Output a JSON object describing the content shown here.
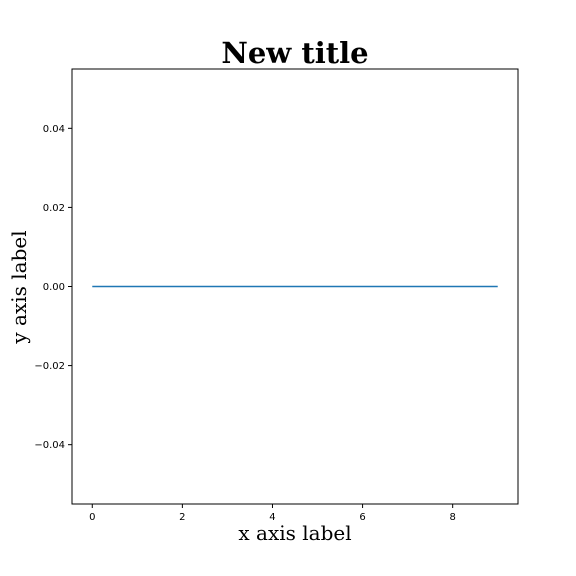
{
  "chart_data": {
    "type": "line",
    "title": "New title",
    "xlabel": "x axis label",
    "ylabel": "y axis label",
    "xlim": [
      -0.45,
      9.45
    ],
    "ylim": [
      -0.055,
      0.055
    ],
    "x_ticks": [
      0,
      2,
      4,
      6,
      8
    ],
    "x_tick_labels": [
      "0",
      "2",
      "4",
      "6",
      "8"
    ],
    "y_ticks": [
      0.04,
      0.02,
      0.0,
      -0.02,
      -0.04
    ],
    "y_tick_labels": [
      "0.04",
      "0.02",
      "0.00",
      "−0.02",
      "−0.04"
    ],
    "grid": false,
    "series": [
      {
        "x": [
          0,
          1,
          2,
          3,
          4,
          5,
          6,
          7,
          8,
          9
        ],
        "values": [
          0,
          0,
          0,
          0,
          0,
          0,
          0,
          0,
          0,
          0
        ],
        "color": "#1f77b4"
      }
    ]
  }
}
